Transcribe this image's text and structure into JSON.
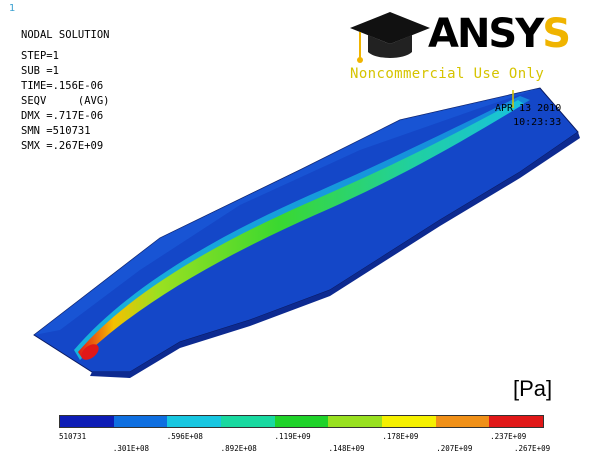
{
  "corner_number": "1",
  "solution": {
    "title": "NODAL SOLUTION",
    "step": "STEP=1",
    "sub": "SUB =1",
    "time": "TIME=.156E-06",
    "seqv": "SEQV     (AVG)",
    "dmx": "DMX =.717E-06",
    "smn": "SMN =510731",
    "smx": "SMX =.267E+09"
  },
  "logo": {
    "brand_main": "ANSY",
    "brand_last": "S",
    "noncommercial": "Noncommercial Use Only",
    "icon": "graduation-cap-icon"
  },
  "date": {
    "date": "APR 13 2010",
    "time": "10:23:33"
  },
  "unit": "[Pa]",
  "legend": {
    "colors": [
      "#0d1cb5",
      "#0f6fe0",
      "#18c6e0",
      "#19d9a0",
      "#1fd22a",
      "#98e020",
      "#f5f000",
      "#f09018",
      "#e01818"
    ],
    "labels_top": [
      "510731",
      ".596E+08",
      ".119E+09",
      ".178E+09",
      ".237E+09"
    ],
    "labels_bottom": [
      ".301E+08",
      ".892E+08",
      ".148E+09",
      ".207E+09",
      ".267E+09"
    ]
  }
}
